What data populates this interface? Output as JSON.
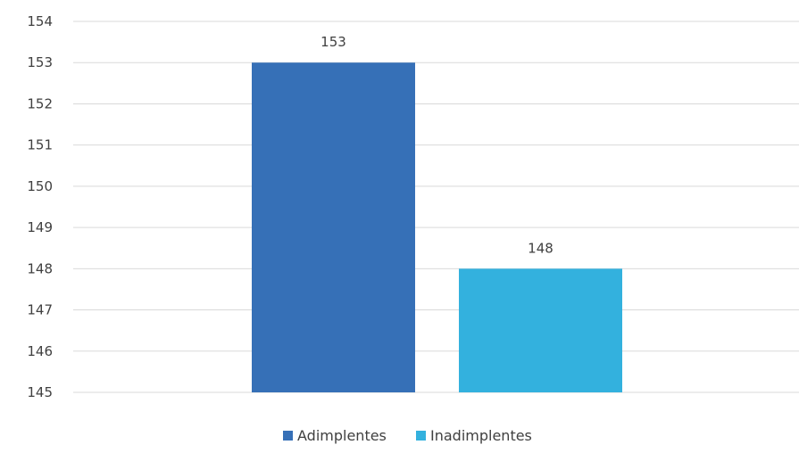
{
  "chart_data": {
    "type": "bar",
    "categories": [
      ""
    ],
    "series": [
      {
        "name": "Adimplentes",
        "values": [
          153
        ],
        "color": "#3670b7"
      },
      {
        "name": "Inadimplentes",
        "values": [
          148
        ],
        "color": "#33b1de"
      }
    ],
    "data_labels": [
      "153",
      "148"
    ],
    "y_ticks": [
      "154",
      "153",
      "152",
      "151",
      "150",
      "149",
      "148",
      "147",
      "146",
      "145"
    ],
    "ylim": [
      145,
      154
    ],
    "grid": true,
    "legend_position": "bottom",
    "title": "",
    "xlabel": "",
    "ylabel": ""
  }
}
